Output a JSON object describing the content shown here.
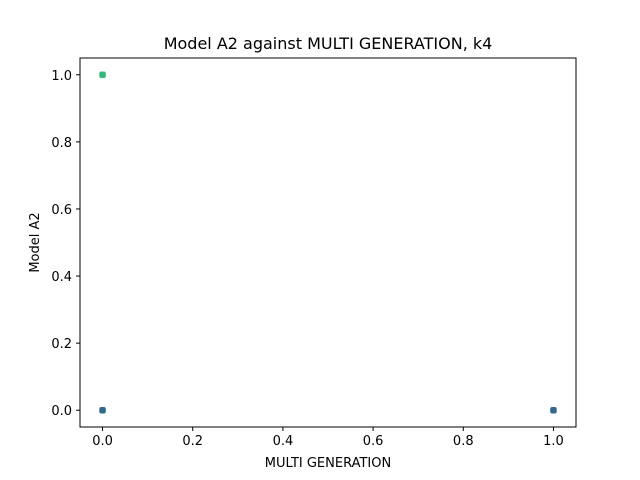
{
  "chart_data": {
    "type": "scatter",
    "title": "Model A2 against MULTI GENERATION, k4",
    "xlabel": "MULTI GENERATION",
    "ylabel": "Model A2",
    "xlim": [
      -0.05,
      1.05
    ],
    "ylim": [
      -0.05,
      1.05
    ],
    "xticks": [
      0.0,
      0.2,
      0.4,
      0.6,
      0.8,
      1.0
    ],
    "xtick_labels": [
      "0.0",
      "0.2",
      "0.4",
      "0.6",
      "0.8",
      "1.0"
    ],
    "yticks": [
      0.0,
      0.2,
      0.4,
      0.6,
      0.8,
      1.0
    ],
    "ytick_labels": [
      "0.0",
      "0.2",
      "0.4",
      "0.6",
      "0.8",
      "1.0"
    ],
    "grid": false,
    "points": [
      {
        "x": 0.0,
        "y": 1.0,
        "color": "#35b779"
      },
      {
        "x": 0.0,
        "y": 0.0,
        "color": "#31688e"
      },
      {
        "x": 1.0,
        "y": 0.0,
        "color": "#31688e"
      }
    ]
  }
}
